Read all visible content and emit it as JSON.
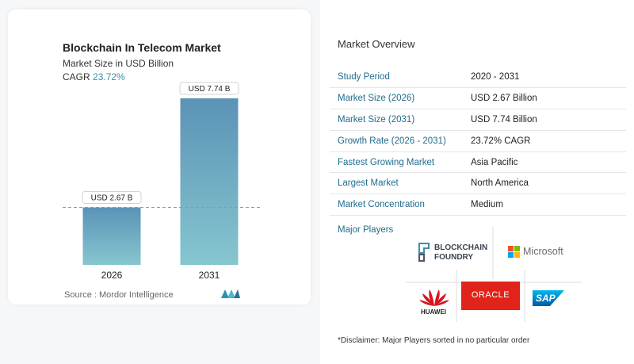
{
  "chart_data": {
    "type": "bar",
    "title": "Blockchain In Telecom Market",
    "subtitle": "Market Size in USD Billion",
    "cagr_label": "CAGR",
    "cagr_value": "23.72%",
    "categories": [
      "2026",
      "2031"
    ],
    "values": [
      2.67,
      7.74
    ],
    "data_labels": [
      "USD 2.67 B",
      "USD 7.74 B"
    ],
    "ylim": [
      0,
      7.74
    ],
    "grid": false,
    "colors": {
      "bar_top": "#5b93b6",
      "bar_bottom": "#86c6cf"
    }
  },
  "source": "Source :  Mordor Intelligence",
  "overview": {
    "title": "Market Overview",
    "rows": [
      {
        "key": "Study Period",
        "value": "2020 - 2031"
      },
      {
        "key": "Market Size (2026)",
        "value": "USD 2.67 Billion"
      },
      {
        "key": "Market Size (2031)",
        "value": "USD 7.74 Billion"
      },
      {
        "key": "Growth Rate (2026 - 2031)",
        "value": "23.72% CAGR"
      },
      {
        "key": "Fastest Growing Market",
        "value": "Asia Pacific"
      },
      {
        "key": "Largest Market",
        "value": "North America"
      },
      {
        "key": "Market Concentration",
        "value": "Medium"
      }
    ]
  },
  "players": {
    "title": "Major Players",
    "logos": {
      "blockchain_foundry": [
        "BLOCKCHAIN",
        "FOUNDRY"
      ],
      "microsoft": "Microsoft",
      "huawei": "HUAWEI",
      "oracle": "ORACLE",
      "sap": "SAP"
    }
  },
  "disclaimer": "*Disclaimer: Major Players sorted in no particular order"
}
